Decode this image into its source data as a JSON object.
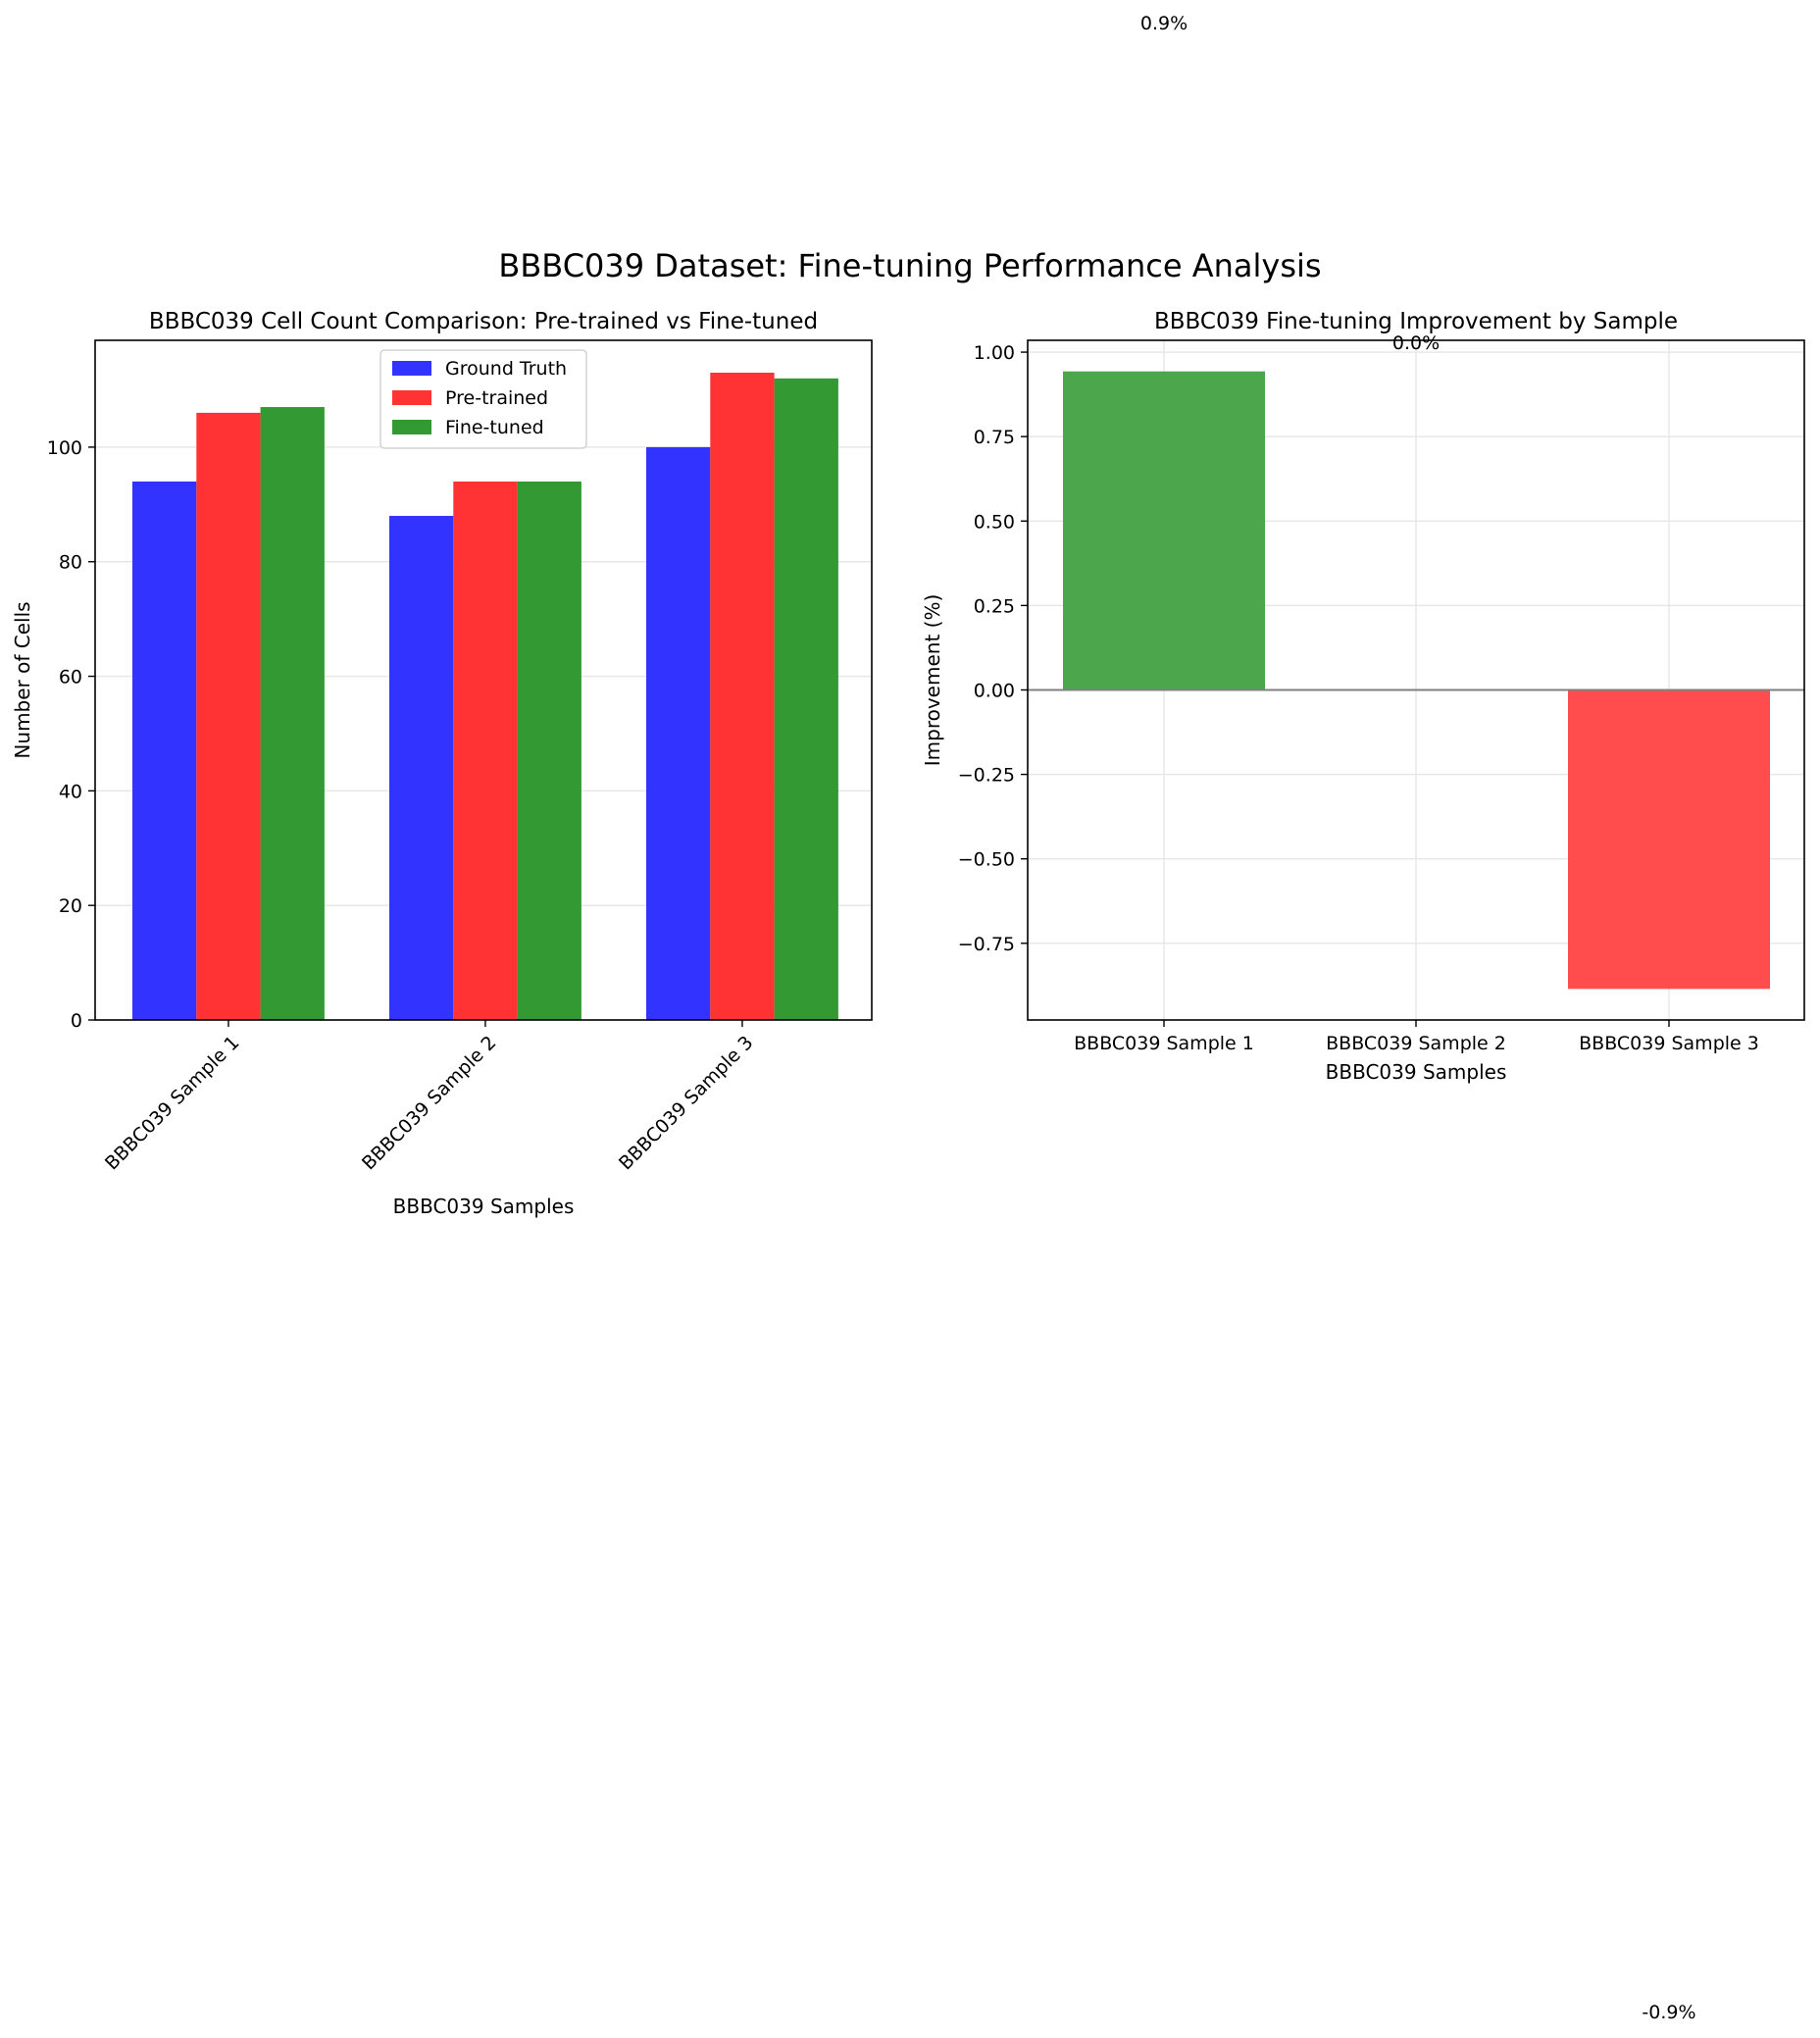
{
  "figure": {
    "suptitle": "BBBC039 Dataset: Fine-tuning Performance Analysis"
  },
  "chart_data": [
    {
      "type": "bar",
      "title": "BBBC039 Cell Count Comparison: Pre-trained vs Fine-tuned",
      "xlabel": "BBBC039 Samples",
      "ylabel": "Number of Cells",
      "categories": [
        "BBBC039 Sample 1",
        "BBBC039 Sample 2",
        "BBBC039 Sample 3"
      ],
      "series": [
        {
          "name": "Ground Truth",
          "values": [
            94,
            88,
            100
          ],
          "color": "#3333ff"
        },
        {
          "name": "Pre-trained",
          "values": [
            106,
            94,
            113
          ],
          "color": "#ff3333"
        },
        {
          "name": "Fine-tuned",
          "values": [
            107,
            94,
            112
          ],
          "color": "#339933"
        }
      ],
      "ylim": [
        0,
        118.65
      ],
      "yticks": [
        0,
        20,
        40,
        60,
        80,
        100
      ],
      "grid": true,
      "legend": "upper center",
      "xtick_rotation": 45
    },
    {
      "type": "bar",
      "title": "BBBC039 Fine-tuning Improvement by Sample",
      "xlabel": "BBBC039 Samples",
      "ylabel": "Improvement (%)",
      "categories": [
        "BBBC039 Sample 1",
        "BBBC039 Sample 2",
        "BBBC039 Sample 3"
      ],
      "values": [
        0.943,
        0.0,
        -0.885
      ],
      "value_labels": [
        "0.9%",
        "0.0%",
        "-0.9%"
      ],
      "colors": [
        "#4ca64c",
        "#4ca64c",
        "#ff4c4c"
      ],
      "ylim": [
        -0.977,
        1.035
      ],
      "yticks": [
        1.0,
        0.75,
        0.5,
        0.25,
        0.0,
        -0.25,
        -0.5,
        -0.75
      ],
      "ytick_labels": [
        "1.00",
        "0.75",
        "0.50",
        "0.25",
        "0.00",
        "−0.25",
        "−0.50",
        "−0.75"
      ],
      "grid": true,
      "zero_line": true
    }
  ]
}
